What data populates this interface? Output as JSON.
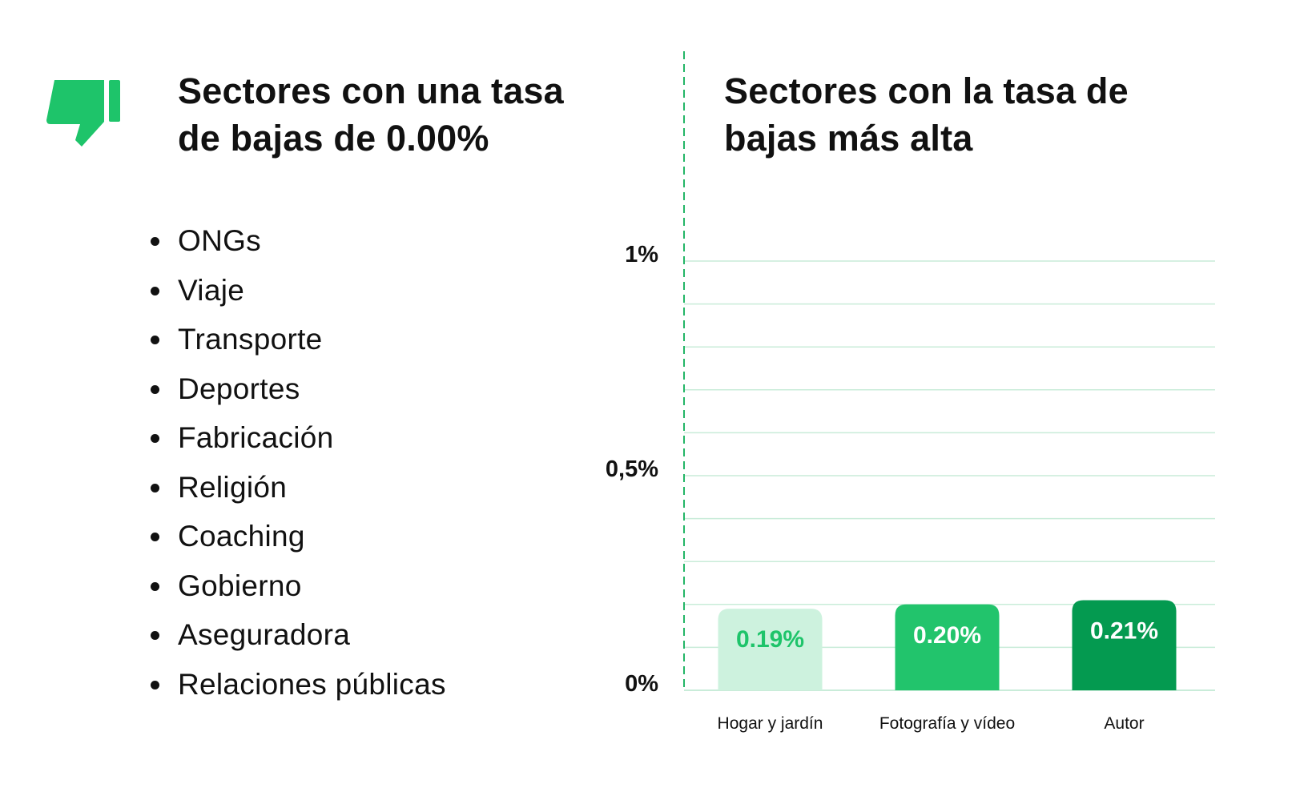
{
  "left_panel": {
    "title_line1": "Sectores con una tasa",
    "title_line2": "de bajas de 0.00%",
    "icon": "thumbs-down-icon",
    "sectors": [
      "ONGs",
      "Viaje",
      "Transporte",
      "Deportes",
      "Fabricación",
      "Religión",
      "Coaching",
      "Gobierno",
      "Aseguradora",
      "Relaciones públicas"
    ]
  },
  "right_panel": {
    "title_line1": "Sectores con la tasa de",
    "title_line2": "bajas más alta"
  },
  "colors": {
    "brand_green": "#1ec46a",
    "divider": "#23b566",
    "grid": "#c9ecd9",
    "bar_light": "#cdf2de",
    "bar_mid": "#22c46c",
    "bar_dark": "#049a50",
    "label_light": "#1ec46a",
    "label_on_dark": "#ffffff"
  },
  "chart_data": {
    "type": "bar",
    "categories": [
      "Hogar y jardín",
      "Fotografía y vídeo",
      "Autor"
    ],
    "values": [
      0.19,
      0.2,
      0.21
    ],
    "value_labels": [
      "0.19%",
      "0.20%",
      "0.21%"
    ],
    "ylim": [
      0,
      1
    ],
    "y_ticks": [
      {
        "value": 0,
        "label": "0%"
      },
      {
        "value": 0.5,
        "label": "0,5%"
      },
      {
        "value": 1,
        "label": "1%"
      }
    ],
    "grid_step": 0.1,
    "grid": true,
    "title": "",
    "xlabel": "",
    "ylabel": ""
  }
}
